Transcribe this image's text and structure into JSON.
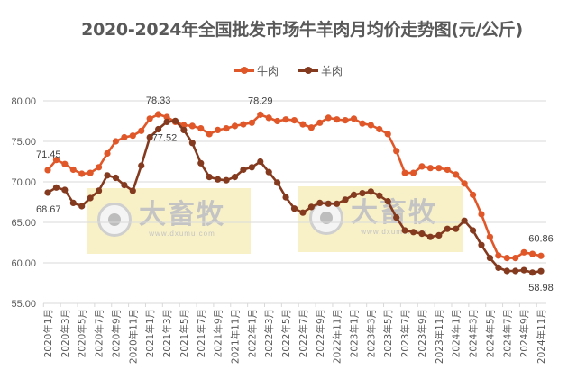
{
  "title": "2020-2024年全国批发市场牛羊肉月均价走势图(元/公斤)",
  "legend": [
    {
      "label": "牛肉",
      "color": "#E0582A"
    },
    {
      "label": "羊肉",
      "color": "#843A1E"
    }
  ],
  "watermark": {
    "brand": "大畜牧",
    "url": "www.dxumu.com"
  },
  "chart_data": {
    "type": "line",
    "title": "2020-2024年全国批发市场牛羊肉月均价走势图(元/公斤)",
    "xlabel": "",
    "ylabel": "元/公斤",
    "ylim": [
      55,
      80
    ],
    "yticks": [
      55.0,
      60.0,
      65.0,
      70.0,
      75.0,
      80.0
    ],
    "ytick_labels": [
      "55.00",
      "60.00",
      "65.00",
      "70.00",
      "75.00",
      "80.00"
    ],
    "grid": true,
    "legend_position": "top",
    "x": [
      "2020年1月",
      "2020年2月",
      "2020年3月",
      "2020年4月",
      "2020年5月",
      "2020年6月",
      "2020年7月",
      "2020年8月",
      "2020年9月",
      "2020年10月",
      "2020年11月",
      "2020年12月",
      "2021年1月",
      "2021年2月",
      "2021年3月",
      "2021年4月",
      "2021年5月",
      "2021年6月",
      "2021年7月",
      "2021年8月",
      "2021年9月",
      "2021年10月",
      "2021年11月",
      "2021年12月",
      "2022年1月",
      "2022年2月",
      "2022年3月",
      "2022年4月",
      "2022年5月",
      "2022年6月",
      "2022年7月",
      "2022年8月",
      "2022年9月",
      "2022年10月",
      "2022年11月",
      "2022年12月",
      "2023年1月",
      "2023年2月",
      "2023年3月",
      "2023年4月",
      "2023年5月",
      "2023年6月",
      "2023年7月",
      "2023年8月",
      "2023年9月",
      "2023年10月",
      "2023年11月",
      "2023年12月",
      "2024年1月",
      "2024年2月",
      "2024年3月",
      "2024年4月",
      "2024年5月",
      "2024年6月",
      "2024年7月",
      "2024年8月",
      "2024年9月",
      "2024年10月",
      "2024年11月"
    ],
    "xtick_labels": [
      "2020年1月",
      "2020年3月",
      "2020年5月",
      "2020年7月",
      "2020年9月",
      "2020年11月",
      "2021年1月",
      "2021年3月",
      "2021年5月",
      "2021年7月",
      "2021年9月",
      "2021年11月",
      "2022年1月",
      "2022年3月",
      "2022年5月",
      "2022年7月",
      "2022年9月",
      "2022年11月",
      "2023年1月",
      "2023年3月",
      "2023年5月",
      "2023年7月",
      "2023年9月",
      "2023年11月",
      "2024年1月",
      "2024年3月",
      "2024年5月",
      "2024年7月",
      "2024年9月",
      "2024年11月"
    ],
    "series": [
      {
        "name": "牛肉",
        "color": "#E0582A",
        "values": [
          71.45,
          72.7,
          72.2,
          71.5,
          71.0,
          71.1,
          71.8,
          73.5,
          75.0,
          75.5,
          75.7,
          76.3,
          77.8,
          78.33,
          78.0,
          77.4,
          77.0,
          76.9,
          76.6,
          75.9,
          76.4,
          76.6,
          76.9,
          77.1,
          77.3,
          78.29,
          77.9,
          77.5,
          77.7,
          77.6,
          77.1,
          76.7,
          77.3,
          77.9,
          77.7,
          77.6,
          77.8,
          77.2,
          77.0,
          76.5,
          75.9,
          73.8,
          71.1,
          71.1,
          71.9,
          71.7,
          71.7,
          71.5,
          70.9,
          69.8,
          68.4,
          66.0,
          63.2,
          60.9,
          60.6,
          60.6,
          61.3,
          61.1,
          60.86
        ]
      },
      {
        "name": "羊肉",
        "color": "#843A1E",
        "values": [
          68.67,
          69.3,
          69.0,
          67.4,
          67.0,
          68.0,
          68.9,
          70.8,
          70.5,
          69.6,
          68.9,
          72.0,
          75.5,
          76.5,
          77.4,
          77.52,
          76.4,
          74.8,
          72.3,
          70.6,
          70.3,
          70.2,
          70.6,
          71.5,
          71.8,
          72.5,
          71.2,
          69.9,
          68.1,
          66.7,
          66.2,
          66.9,
          67.4,
          67.3,
          67.3,
          67.8,
          68.4,
          68.6,
          68.8,
          68.3,
          67.6,
          65.6,
          64.0,
          63.8,
          63.6,
          63.2,
          63.4,
          64.2,
          64.2,
          65.2,
          64.0,
          62.2,
          60.6,
          59.4,
          59.0,
          59.0,
          59.1,
          58.8,
          58.98
        ]
      }
    ],
    "annotations": [
      {
        "series": "牛肉",
        "x": "2020年1月",
        "label": "71.45"
      },
      {
        "series": "羊肉",
        "x": "2020年1月",
        "label": "68.67"
      },
      {
        "series": "牛肉",
        "x": "2021年2月",
        "label": "78.33"
      },
      {
        "series": "羊肉",
        "x": "2021年4月",
        "label": "77.52"
      },
      {
        "series": "牛肉",
        "x": "2022年2月",
        "label": "78.29"
      },
      {
        "series": "牛肉",
        "x": "2024年11月",
        "label": "60.86"
      },
      {
        "series": "羊肉",
        "x": "2024年11月",
        "label": "58.98"
      }
    ]
  }
}
